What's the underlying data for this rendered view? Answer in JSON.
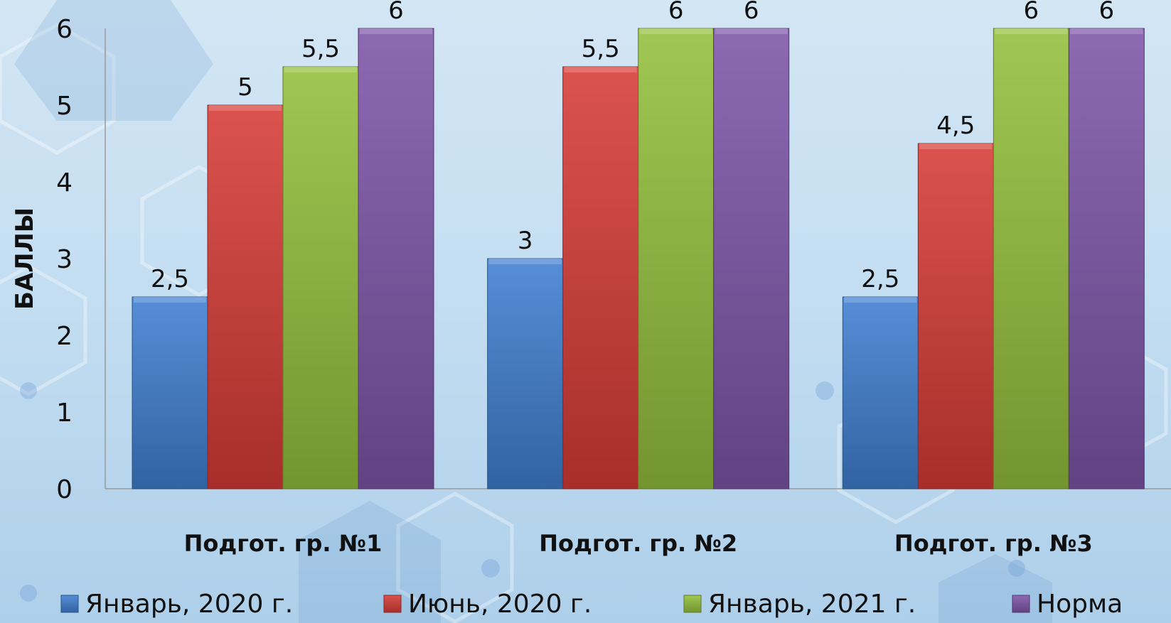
{
  "chart_data": {
    "type": "bar",
    "categories": [
      "Подгот. гр. №1",
      "Подгот. гр. №2",
      "Подгот. гр. №3"
    ],
    "series": [
      {
        "name": "Январь, 2020 г.",
        "values": [
          2.5,
          3,
          2.5
        ],
        "labels": [
          "2,5",
          "3",
          "2,5"
        ],
        "color": "#3f7fd0"
      },
      {
        "name": "Июнь, 2020 г.",
        "values": [
          5,
          5.5,
          4.5
        ],
        "labels": [
          "5",
          "5,5",
          "4,5"
        ],
        "color": "#d63b36"
      },
      {
        "name": "Январь, 2021 г.",
        "values": [
          5.5,
          6,
          6
        ],
        "labels": [
          "5,5",
          "6",
          "6"
        ],
        "color": "#93bf3c"
      },
      {
        "name": "Норма",
        "values": [
          6,
          6,
          6
        ],
        "labels": [
          "6",
          "6",
          "6"
        ],
        "color": "#7d55a8"
      }
    ],
    "ylabel": "БАЛЛЫ",
    "xlabel": "",
    "ylim": [
      0,
      6
    ],
    "yticks": [
      "0",
      "1",
      "2",
      "3",
      "4",
      "5",
      "6"
    ],
    "grid": false,
    "legend_position": "bottom"
  }
}
